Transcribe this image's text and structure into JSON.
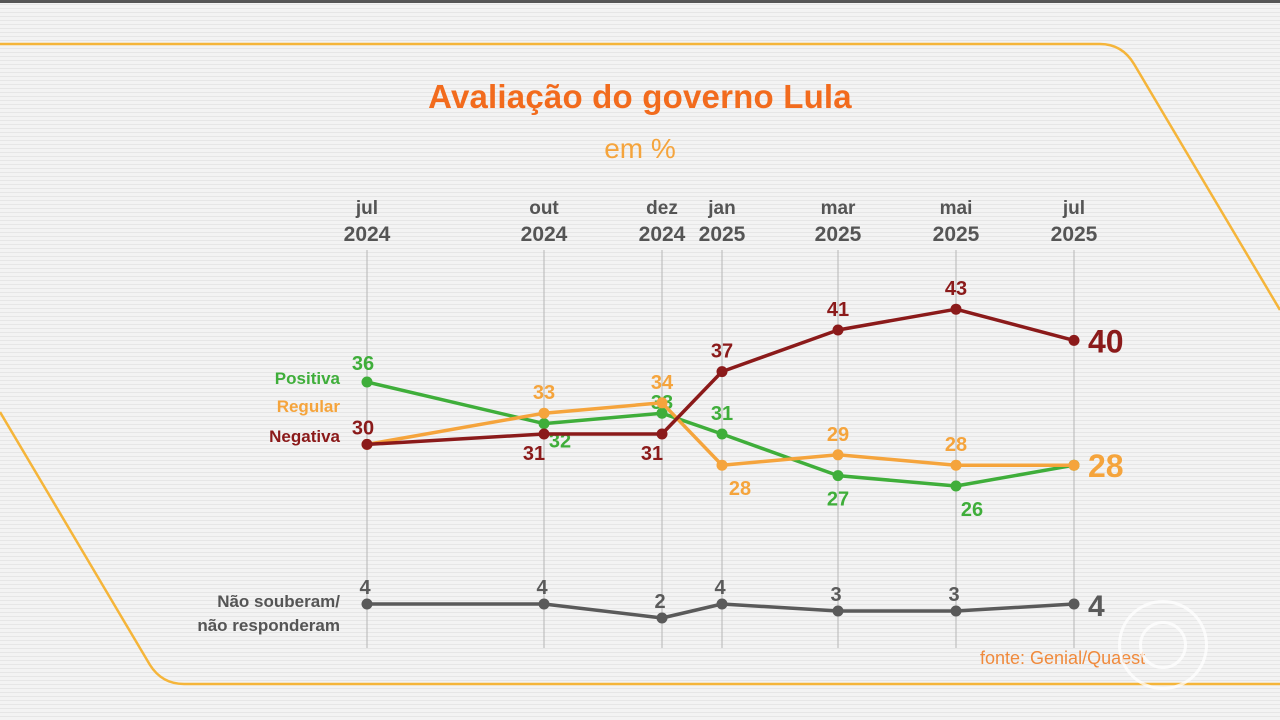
{
  "colors": {
    "positiva": "#3fae3a",
    "regular": "#f5a43c",
    "negativa": "#8b1a1a",
    "nr": "#5a5a5a",
    "title": "#f26b1d",
    "frame": "#f5b53a"
  },
  "chart_data": {
    "type": "line",
    "title": "Avaliação do governo Lula",
    "subtitle": "em %",
    "source": "fonte: Genial/Quaest",
    "categories": [
      {
        "month": "jul",
        "year": "2024"
      },
      {
        "month": "out",
        "year": "2024"
      },
      {
        "month": "dez",
        "year": "2024"
      },
      {
        "month": "jan",
        "year": "2025"
      },
      {
        "month": "mar",
        "year": "2025"
      },
      {
        "month": "mai",
        "year": "2025"
      },
      {
        "month": "jul",
        "year": "2025"
      }
    ],
    "series": [
      {
        "key": "positiva",
        "name": "Positiva",
        "values": [
          36,
          32,
          33,
          31,
          27,
          26,
          28
        ]
      },
      {
        "key": "regular",
        "name": "Regular",
        "values": [
          30,
          33,
          34,
          28,
          29,
          28,
          28
        ]
      },
      {
        "key": "negativa",
        "name": "Negativa",
        "values": [
          30,
          31,
          31,
          37,
          41,
          43,
          40
        ]
      }
    ],
    "nr_series": {
      "key": "nr",
      "name_line1": "Não souberam/",
      "name_line2": "não responderam",
      "values": [
        4,
        4,
        2,
        4,
        3,
        3,
        4
      ]
    },
    "final_labels": {
      "negativa": "40",
      "regular_positiva": "28",
      "nr": "4"
    }
  }
}
